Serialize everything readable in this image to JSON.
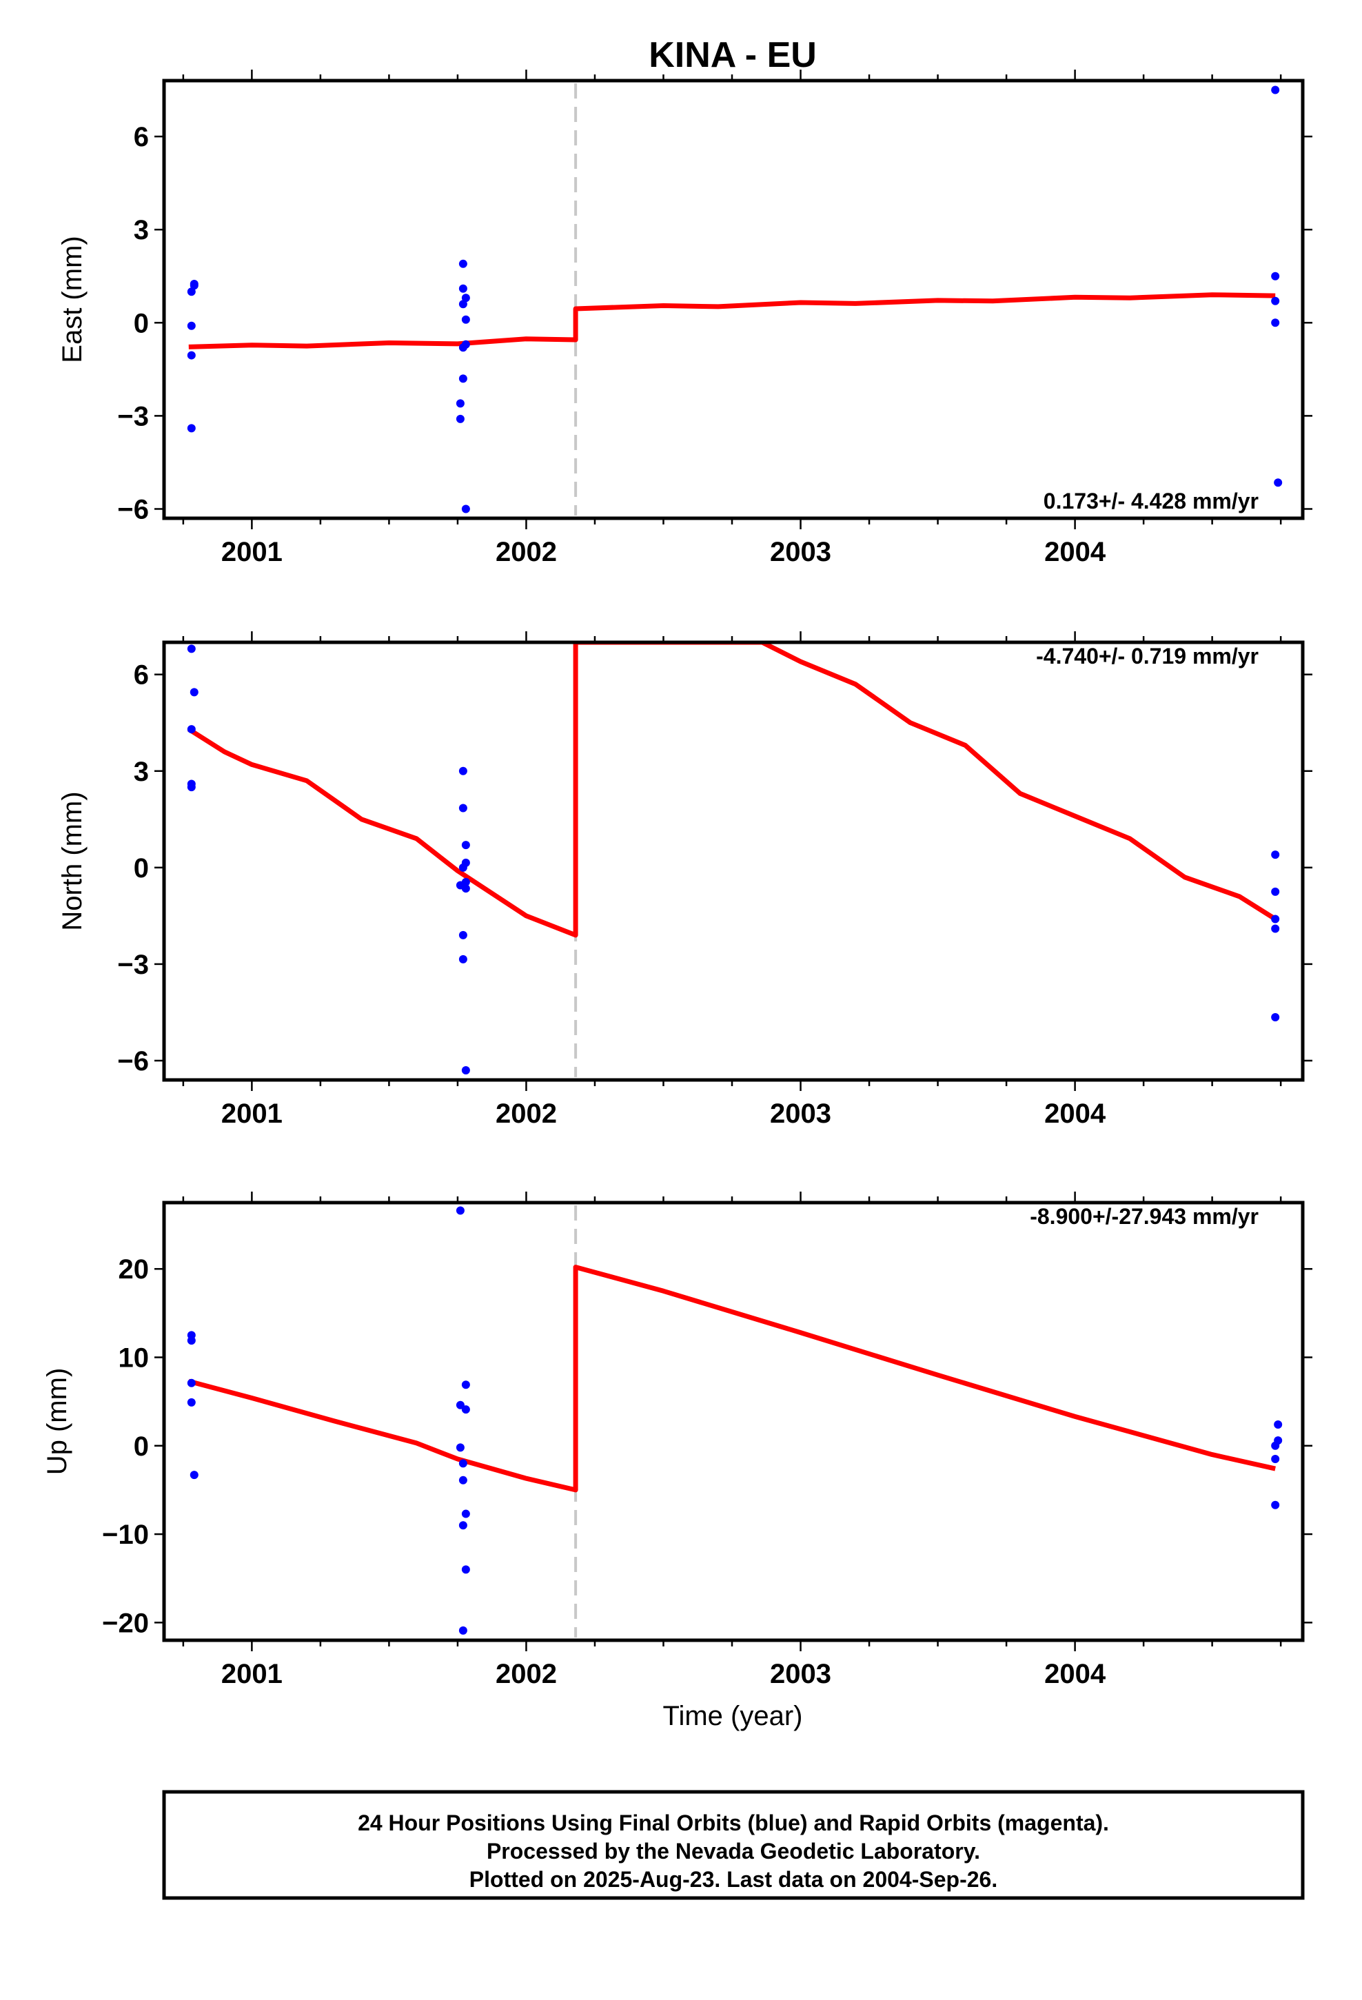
{
  "title": "KINA - EU",
  "x_axis_label": "Time (year)",
  "footer": {
    "line1": "24 Hour Positions Using Final Orbits (blue) and Rapid Orbits (magenta).",
    "line2": "Processed by the Nevada Geodetic Laboratory.",
    "line3": "Plotted on 2025-Aug-23. Last data on 2004-Sep-26."
  },
  "colors": {
    "points": "#0000ff",
    "model": "#ff0000",
    "event_line": "#c8c8c8",
    "frame": "#000000"
  },
  "chart_data": [
    {
      "type": "scatter",
      "component": "East",
      "ylabel": "East (mm)",
      "rate_label": "0.173+/- 4.428 mm/yr",
      "xlim": [
        2000.68,
        2004.83
      ],
      "ylim": [
        -6.3,
        7.8
      ],
      "xticks": [
        2001,
        2002,
        2003,
        2004
      ],
      "yticks": [
        6,
        3,
        0,
        -3,
        -6
      ],
      "ytick_labels": [
        "6",
        "3",
        "0",
        "−3",
        "−6"
      ],
      "event_x": 2002.18,
      "points": [
        {
          "x": 2000.78,
          "y": 1.0
        },
        {
          "x": 2000.79,
          "y": 1.2
        },
        {
          "x": 2000.79,
          "y": 1.25
        },
        {
          "x": 2000.78,
          "y": -0.1
        },
        {
          "x": 2000.78,
          "y": -1.05
        },
        {
          "x": 2000.78,
          "y": -3.4
        },
        {
          "x": 2001.77,
          "y": 1.9
        },
        {
          "x": 2001.77,
          "y": 1.1
        },
        {
          "x": 2001.78,
          "y": 0.8
        },
        {
          "x": 2001.77,
          "y": 0.6
        },
        {
          "x": 2001.78,
          "y": 0.1
        },
        {
          "x": 2001.78,
          "y": -0.7
        },
        {
          "x": 2001.77,
          "y": -0.8
        },
        {
          "x": 2001.77,
          "y": -1.8
        },
        {
          "x": 2001.76,
          "y": -2.6
        },
        {
          "x": 2001.76,
          "y": -3.1
        },
        {
          "x": 2001.78,
          "y": -6.0
        },
        {
          "x": 2004.73,
          "y": 7.5
        },
        {
          "x": 2004.73,
          "y": 1.5
        },
        {
          "x": 2004.73,
          "y": 0.7
        },
        {
          "x": 2004.73,
          "y": 0.0
        },
        {
          "x": 2004.74,
          "y": -5.15
        }
      ],
      "model": [
        {
          "x": 2000.77,
          "y": -0.78
        },
        {
          "x": 2001.0,
          "y": -0.72
        },
        {
          "x": 2001.2,
          "y": -0.75
        },
        {
          "x": 2001.5,
          "y": -0.65
        },
        {
          "x": 2001.75,
          "y": -0.68
        },
        {
          "x": 2002.0,
          "y": -0.52
        },
        {
          "x": 2002.18,
          "y": -0.55
        },
        {
          "x": 2002.18,
          "y": 0.45
        },
        {
          "x": 2002.5,
          "y": 0.55
        },
        {
          "x": 2002.7,
          "y": 0.52
        },
        {
          "x": 2003.0,
          "y": 0.65
        },
        {
          "x": 2003.2,
          "y": 0.62
        },
        {
          "x": 2003.5,
          "y": 0.72
        },
        {
          "x": 2003.7,
          "y": 0.7
        },
        {
          "x": 2004.0,
          "y": 0.82
        },
        {
          "x": 2004.2,
          "y": 0.8
        },
        {
          "x": 2004.5,
          "y": 0.9
        },
        {
          "x": 2004.73,
          "y": 0.87
        }
      ]
    },
    {
      "type": "scatter",
      "component": "North",
      "ylabel": "North (mm)",
      "rate_label": "-4.740+/- 0.719 mm/yr",
      "xlim": [
        2000.68,
        2004.83
      ],
      "ylim": [
        -6.6,
        7.0
      ],
      "xticks": [
        2001,
        2002,
        2003,
        2004
      ],
      "yticks": [
        6,
        3,
        0,
        -3,
        -6
      ],
      "ytick_labels": [
        "6",
        "3",
        "0",
        "−3",
        "−6"
      ],
      "event_x": 2002.18,
      "points": [
        {
          "x": 2000.78,
          "y": 6.8
        },
        {
          "x": 2000.79,
          "y": 5.45
        },
        {
          "x": 2000.78,
          "y": 4.3
        },
        {
          "x": 2000.78,
          "y": 2.6
        },
        {
          "x": 2000.78,
          "y": 2.5
        },
        {
          "x": 2001.77,
          "y": 3.0
        },
        {
          "x": 2001.77,
          "y": 1.85
        },
        {
          "x": 2001.78,
          "y": 0.7
        },
        {
          "x": 2001.78,
          "y": 0.15
        },
        {
          "x": 2001.77,
          "y": 0.0
        },
        {
          "x": 2001.78,
          "y": -0.45
        },
        {
          "x": 2001.76,
          "y": -0.55
        },
        {
          "x": 2001.78,
          "y": -0.65
        },
        {
          "x": 2001.77,
          "y": -2.1
        },
        {
          "x": 2001.77,
          "y": -2.85
        },
        {
          "x": 2001.78,
          "y": -6.3
        },
        {
          "x": 2004.73,
          "y": 0.4
        },
        {
          "x": 2004.73,
          "y": -0.75
        },
        {
          "x": 2004.73,
          "y": -1.6
        },
        {
          "x": 2004.73,
          "y": -1.9
        },
        {
          "x": 2004.73,
          "y": -4.65
        }
      ],
      "model": [
        {
          "x": 2000.77,
          "y": 4.3
        },
        {
          "x": 2000.9,
          "y": 3.6
        },
        {
          "x": 2001.0,
          "y": 3.2
        },
        {
          "x": 2001.2,
          "y": 2.7
        },
        {
          "x": 2001.4,
          "y": 1.5
        },
        {
          "x": 2001.6,
          "y": 0.9
        },
        {
          "x": 2001.75,
          "y": -0.1
        },
        {
          "x": 2002.0,
          "y": -1.5
        },
        {
          "x": 2002.18,
          "y": -2.1
        },
        {
          "x": 2002.18,
          "y": 7.0
        },
        {
          "x": 2002.86,
          "y": 7.0
        },
        {
          "x": 2003.0,
          "y": 6.4
        },
        {
          "x": 2003.2,
          "y": 5.7
        },
        {
          "x": 2003.4,
          "y": 4.5
        },
        {
          "x": 2003.6,
          "y": 3.8
        },
        {
          "x": 2003.8,
          "y": 2.3
        },
        {
          "x": 2004.0,
          "y": 1.6
        },
        {
          "x": 2004.2,
          "y": 0.9
        },
        {
          "x": 2004.4,
          "y": -0.3
        },
        {
          "x": 2004.6,
          "y": -0.9
        },
        {
          "x": 2004.73,
          "y": -1.6
        }
      ]
    },
    {
      "type": "scatter",
      "component": "Up",
      "ylabel": "Up (mm)",
      "rate_label": "-8.900+/-27.943 mm/yr",
      "xlim": [
        2000.68,
        2004.83
      ],
      "ylim": [
        -22,
        27.5
      ],
      "xticks": [
        2001,
        2002,
        2003,
        2004
      ],
      "yticks": [
        20,
        10,
        0,
        -10,
        -20
      ],
      "ytick_labels": [
        "20",
        "10",
        "0",
        "−10",
        "−20"
      ],
      "event_x": 2002.18,
      "points": [
        {
          "x": 2000.78,
          "y": 12.5
        },
        {
          "x": 2000.78,
          "y": 11.9
        },
        {
          "x": 2000.78,
          "y": 7.1
        },
        {
          "x": 2000.78,
          "y": 4.9
        },
        {
          "x": 2000.79,
          "y": -3.3
        },
        {
          "x": 2001.76,
          "y": 26.6
        },
        {
          "x": 2001.78,
          "y": 6.9
        },
        {
          "x": 2001.76,
          "y": 4.6
        },
        {
          "x": 2001.78,
          "y": 4.1
        },
        {
          "x": 2001.76,
          "y": -0.2
        },
        {
          "x": 2001.77,
          "y": -2.0
        },
        {
          "x": 2001.77,
          "y": -3.9
        },
        {
          "x": 2001.78,
          "y": -7.7
        },
        {
          "x": 2001.77,
          "y": -9.0
        },
        {
          "x": 2001.78,
          "y": -14.0
        },
        {
          "x": 2001.77,
          "y": -20.9
        },
        {
          "x": 2004.74,
          "y": 2.4
        },
        {
          "x": 2004.74,
          "y": 0.6
        },
        {
          "x": 2004.73,
          "y": 0.0
        },
        {
          "x": 2004.73,
          "y": -1.5
        },
        {
          "x": 2004.73,
          "y": -6.7
        }
      ],
      "model": [
        {
          "x": 2000.77,
          "y": 7.3
        },
        {
          "x": 2001.0,
          "y": 5.4
        },
        {
          "x": 2001.3,
          "y": 2.8
        },
        {
          "x": 2001.6,
          "y": 0.3
        },
        {
          "x": 2001.75,
          "y": -1.5
        },
        {
          "x": 2002.0,
          "y": -3.7
        },
        {
          "x": 2002.18,
          "y": -5.0
        },
        {
          "x": 2002.18,
          "y": 20.2
        },
        {
          "x": 2002.5,
          "y": 17.5
        },
        {
          "x": 2003.0,
          "y": 12.8
        },
        {
          "x": 2003.5,
          "y": 8.0
        },
        {
          "x": 2004.0,
          "y": 3.3
        },
        {
          "x": 2004.5,
          "y": -1.0
        },
        {
          "x": 2004.73,
          "y": -2.6
        }
      ]
    }
  ]
}
